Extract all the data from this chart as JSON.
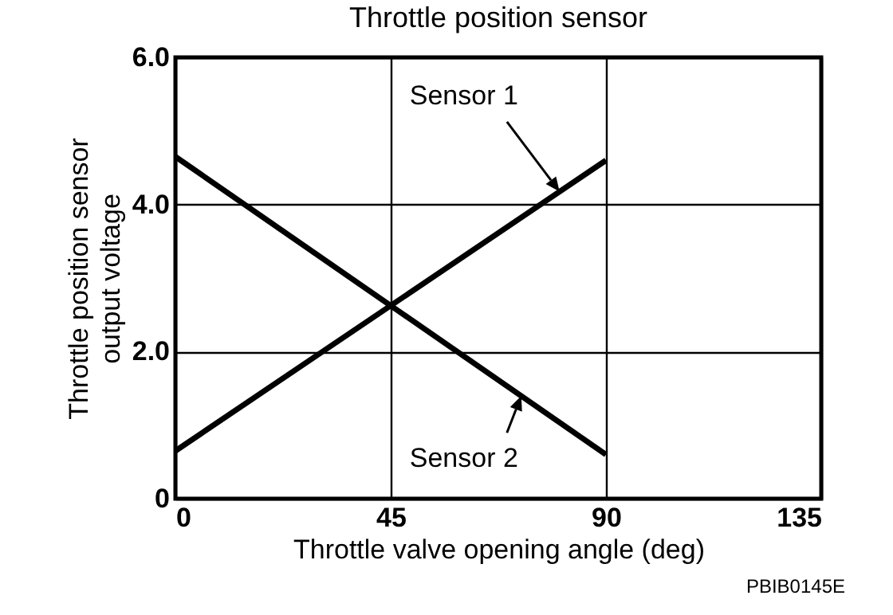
{
  "chart_data": {
    "type": "line",
    "title": "Throttle position sensor",
    "xlabel": "Throttle valve opening angle (deg)",
    "ylabel": "Throttle position sensor output voltage",
    "x": [
      0,
      90
    ],
    "series": [
      {
        "name": "Sensor 1",
        "color": "#000000",
        "values": [
          0.65,
          4.6
        ]
      },
      {
        "name": "Sensor 2",
        "color": "#000000",
        "values": [
          4.65,
          0.6
        ]
      }
    ],
    "xlim": [
      0,
      135
    ],
    "xticks": [
      0,
      45,
      90,
      135
    ],
    "ylim": [
      0,
      6
    ],
    "yticks": [
      0,
      {
        "value": 2,
        "label": "2.0"
      },
      {
        "value": 4,
        "label": "4.0"
      },
      {
        "value": 6,
        "label": "6.0"
      }
    ],
    "grid": true,
    "marker": "none",
    "line_style": "solid",
    "annotations": [
      "PBIB0145E"
    ]
  }
}
